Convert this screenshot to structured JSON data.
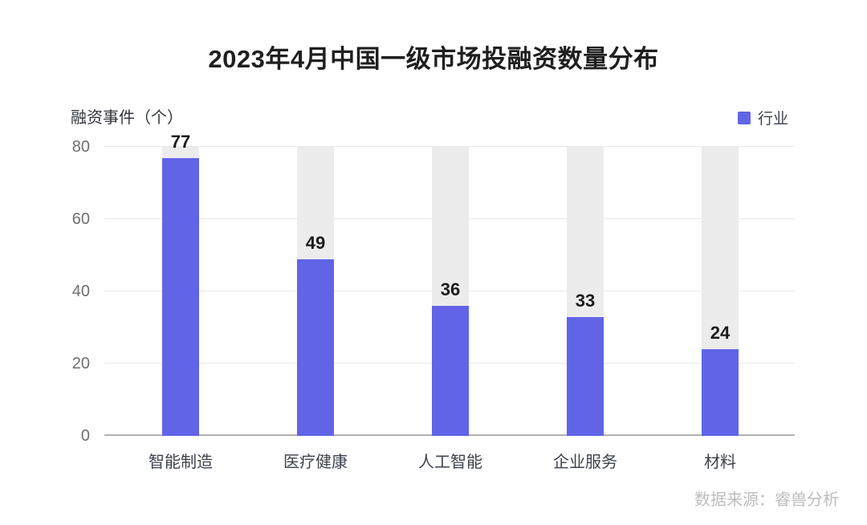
{
  "chart_data": {
    "type": "bar",
    "title": "2023年4月中国一级市场投融资数量分布",
    "ylabel": "融资事件（个）",
    "xlabel": "",
    "legend": {
      "label": "行业",
      "position": "top-right"
    },
    "categories": [
      "智能制造",
      "医疗健康",
      "人工智能",
      "企业服务",
      "材料"
    ],
    "values": [
      77,
      49,
      36,
      33,
      24
    ],
    "yticks": [
      0,
      20,
      40,
      60,
      80
    ],
    "ylim": [
      0,
      80
    ],
    "grid": true,
    "track_bars_to_ymax": true,
    "colors": {
      "bar": "#6164e6",
      "track": "#ececec",
      "gridline": "#e8e8e8",
      "axis": "#b2b2b2"
    },
    "source": "数据来源：睿兽分析"
  }
}
